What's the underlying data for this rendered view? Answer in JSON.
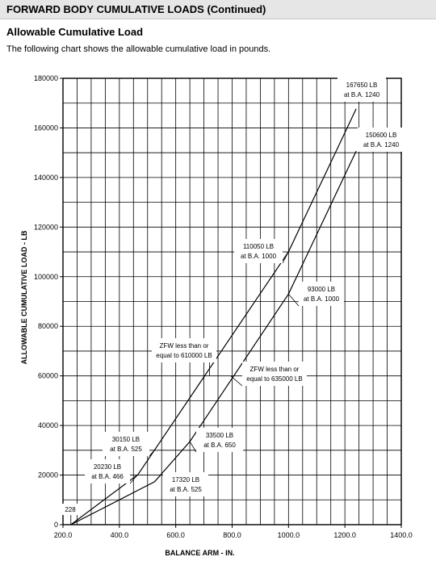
{
  "page": {
    "title": "FORWARD BODY CUMULATIVE LOADS (Continued)",
    "subtitle": "Allowable Cumulative Load",
    "intro": "The following chart shows the allowable cumulative load in pounds."
  },
  "chart_data": {
    "type": "line",
    "xlabel": "BALANCE ARM - IN.",
    "ylabel": "ALLOWABLE CUMULATIVE LOAD - LB",
    "xlim": [
      200,
      1400
    ],
    "ylim": [
      0,
      180000
    ],
    "x_ticks": [
      "200.0",
      "400.0",
      "600.0",
      "800.0",
      "1000.0",
      "1200.0",
      "1400.0"
    ],
    "y_ticks": [
      "0",
      "20000",
      "40000",
      "60000",
      "80000",
      "100000",
      "120000",
      "140000",
      "160000",
      "180000"
    ],
    "grid": true,
    "series": [
      {
        "name": "ZFW less than or equal to 610000 LB",
        "points": [
          [
            228,
            0
          ],
          [
            466,
            20230
          ],
          [
            525,
            30150
          ],
          [
            1000,
            110050
          ],
          [
            1240,
            167650
          ]
        ]
      },
      {
        "name": "ZFW less than or equal to 635000 LB",
        "points": [
          [
            228,
            0
          ],
          [
            525,
            17320
          ],
          [
            650,
            33500
          ],
          [
            1000,
            93000
          ],
          [
            1240,
            150600
          ]
        ]
      }
    ],
    "annotations": [
      {
        "lines": [
          "167650 LB",
          "at B.A. 1240"
        ]
      },
      {
        "lines": [
          "150600 LB",
          "at B.A. 1240"
        ]
      },
      {
        "lines": [
          "110050 LB",
          "at B.A. 1000"
        ]
      },
      {
        "lines": [
          "93000 LB",
          "at B.A. 1000"
        ]
      },
      {
        "lines": [
          "ZFW less than or",
          "equal to 610000 LB"
        ]
      },
      {
        "lines": [
          "ZFW less than or",
          "equal to 635000 LB"
        ]
      },
      {
        "lines": [
          "30150 LB",
          "at B.A. 525"
        ]
      },
      {
        "lines": [
          "33500 LB",
          "at B.A. 650"
        ]
      },
      {
        "lines": [
          "20230 LB",
          "at B.A. 466"
        ]
      },
      {
        "lines": [
          "17320 LB",
          "at B.A. 525"
        ]
      },
      {
        "lines": [
          "228"
        ]
      }
    ]
  }
}
